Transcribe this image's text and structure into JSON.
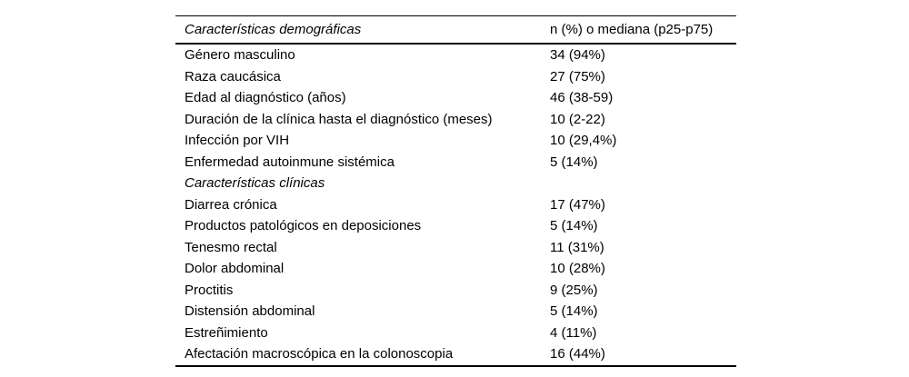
{
  "table": {
    "header": {
      "characteristics": "Características demográficas",
      "values": "n (%) o mediana (p25-p75)"
    },
    "rows": [
      {
        "label": "Género masculino",
        "value": "34 (94%)",
        "italic": false
      },
      {
        "label": "Raza caucásica",
        "value": "27 (75%)",
        "italic": false
      },
      {
        "label": "Edad al diagnóstico (años)",
        "value": "46 (38-59)",
        "italic": false
      },
      {
        "label": "Duración de la clínica hasta el diagnóstico (meses)",
        "value": "10 (2-22)",
        "italic": false
      },
      {
        "label": "Infección por VIH",
        "value": "10 (29,4%)",
        "italic": false
      },
      {
        "label": "Enfermedad autoinmune sistémica",
        "value": "5 (14%)",
        "italic": false
      },
      {
        "label": "Características clínicas",
        "value": "",
        "italic": true
      },
      {
        "label": "Diarrea crónica",
        "value": "17 (47%)",
        "italic": false
      },
      {
        "label": "Productos patológicos en deposiciones",
        "value": "5 (14%)",
        "italic": false
      },
      {
        "label": "Tenesmo rectal",
        "value": "11 (31%)",
        "italic": false
      },
      {
        "label": "Dolor abdominal",
        "value": "10 (28%)",
        "italic": false
      },
      {
        "label": "Proctitis",
        "value": "9 (25%)",
        "italic": false
      },
      {
        "label": "Distensión abdominal",
        "value": "5 (14%)",
        "italic": false
      },
      {
        "label": "Estreñimiento",
        "value": "4 (11%)",
        "italic": false
      },
      {
        "label": "Afectación macroscópica en la colonoscopia",
        "value": "16 (44%)",
        "italic": false
      }
    ],
    "colors": {
      "text": "#000000",
      "rule": "#000000",
      "background": "#ffffff"
    }
  }
}
